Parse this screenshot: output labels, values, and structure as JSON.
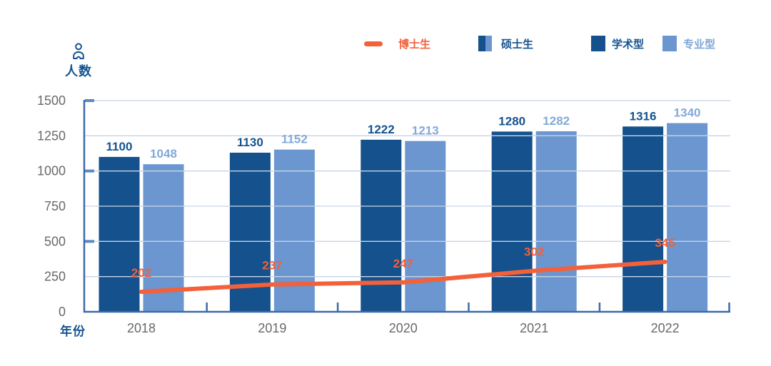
{
  "chart_data": {
    "type": "bar",
    "subtype": "grouped-bar-with-line-overlay",
    "categories": [
      "2018",
      "2019",
      "2020",
      "2021",
      "2022"
    ],
    "series": [
      {
        "name": "学术型",
        "slug": "academic",
        "type": "bar",
        "color": "#14518d",
        "label_color": "#14538f",
        "values": [
          1100,
          1130,
          1222,
          1280,
          1316
        ]
      },
      {
        "name": "专业型",
        "slug": "professional",
        "type": "bar",
        "color": "#6b96cf",
        "label_color": "#82a9da",
        "values": [
          1048,
          1152,
          1213,
          1282,
          1340
        ]
      },
      {
        "name": "博士生",
        "slug": "phd",
        "type": "line",
        "color": "#f3603a",
        "label_color": "#f3603a",
        "values": [
          202,
          237,
          247,
          302,
          345
        ]
      }
    ],
    "bar_pair_group_name": "硕士生",
    "xlabel": "年份",
    "ylabel": "人数",
    "y_ticks": [
      0,
      250,
      500,
      750,
      1000,
      1250,
      1500
    ],
    "ylim": [
      0,
      1500
    ],
    "grid": true,
    "legend_position": "top",
    "legend": [
      {
        "label": "博士生",
        "swatch": "line",
        "colors": [
          "#f3603a"
        ],
        "text_color": "#f3603a"
      },
      {
        "label": "硕士生",
        "swatch": "split-square",
        "colors": [
          "#14518d",
          "#6b96cf"
        ],
        "text_color": "#14538f"
      },
      {
        "label": "学术型",
        "swatch": "square",
        "colors": [
          "#14518d"
        ],
        "text_color": "#14538f"
      },
      {
        "label": "专业型",
        "swatch": "square",
        "colors": [
          "#6b96cf"
        ],
        "text_color": "#7ea6d8"
      }
    ],
    "colors": {
      "axis": "#3d6aab",
      "grid": "#c7d5e6",
      "y_tick_mark": "#5b89c2",
      "tick_label": "#696969",
      "axis_title": "#14538f"
    }
  }
}
